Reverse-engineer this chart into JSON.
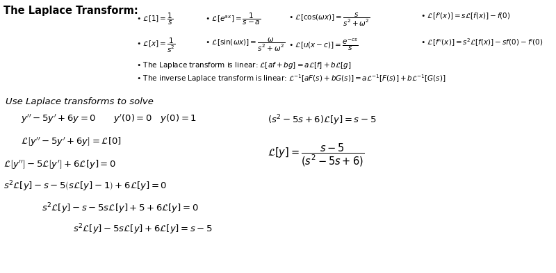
{
  "background_color": "#ffffff",
  "title_text": "The Laplace Transform:",
  "solve_label": "Use Laplace transforms to solve",
  "fig_width": 8.0,
  "fig_height": 3.93,
  "dpi": 100
}
